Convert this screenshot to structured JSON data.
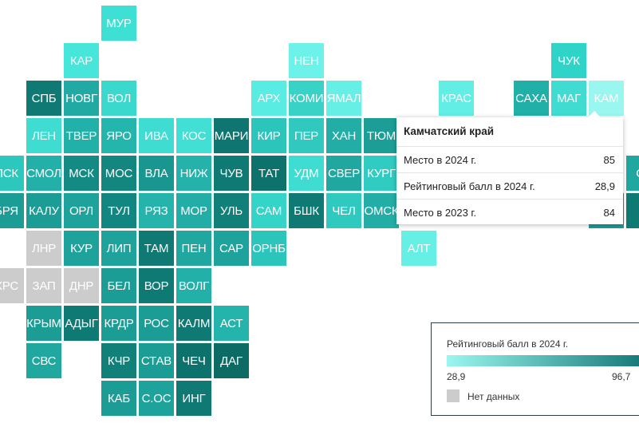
{
  "map_data": {
    "regions": [
      {
        "code": "МУР",
        "col": 3,
        "row": 0,
        "color": "#3fe0d4"
      },
      {
        "code": "КАР",
        "col": 2,
        "row": 1,
        "color": "#46e6da"
      },
      {
        "code": "НЕН",
        "col": 8,
        "row": 1,
        "color": "#6cf2e8"
      },
      {
        "code": "ЧУК",
        "col": 15,
        "row": 1,
        "color": "#2fd4c9"
      },
      {
        "code": "СПБ",
        "col": 1,
        "row": 2,
        "color": "#0f7a74"
      },
      {
        "code": "НОВГ",
        "col": 2,
        "row": 2,
        "color": "#21aaa3"
      },
      {
        "code": "ВОЛ",
        "col": 3,
        "row": 2,
        "color": "#3bd8cd"
      },
      {
        "code": "АРХ",
        "col": 7,
        "row": 2,
        "color": "#58ece2"
      },
      {
        "code": "КОМИ",
        "col": 8,
        "row": 2,
        "color": "#38d2c7"
      },
      {
        "code": "ЯМАЛ",
        "col": 9,
        "row": 2,
        "color": "#66efe5"
      },
      {
        "code": "КРАС",
        "col": 12,
        "row": 2,
        "color": "#62eee4"
      },
      {
        "code": "САХА",
        "col": 14,
        "row": 2,
        "color": "#20b0a8"
      },
      {
        "code": "МАГ",
        "col": 15,
        "row": 2,
        "color": "#40dcd1"
      },
      {
        "code": "КАМ",
        "col": 16,
        "row": 2,
        "color": "#9af7ef"
      },
      {
        "code": "ЛЕН",
        "col": 1,
        "row": 3,
        "color": "#3fdcd1"
      },
      {
        "code": "ТВЕР",
        "col": 2,
        "row": 3,
        "color": "#22b1a9"
      },
      {
        "code": "ЯРО",
        "col": 3,
        "row": 3,
        "color": "#24b5ad"
      },
      {
        "code": "ИВА",
        "col": 4,
        "row": 3,
        "color": "#3fdcd1"
      },
      {
        "code": "КОС",
        "col": 5,
        "row": 3,
        "color": "#42dfd4"
      },
      {
        "code": "МАРИ",
        "col": 6,
        "row": 3,
        "color": "#0e7570"
      },
      {
        "code": "КИР",
        "col": 7,
        "row": 3,
        "color": "#2bc5bb"
      },
      {
        "code": "ПЕР",
        "col": 8,
        "row": 3,
        "color": "#31c9bf"
      },
      {
        "code": "ХАН",
        "col": 9,
        "row": 3,
        "color": "#22aea7"
      },
      {
        "code": "ТЮМ",
        "col": 10,
        "row": 3,
        "color": "#1c9e97"
      },
      {
        "code": "ПСК",
        "col": 0,
        "row": 4,
        "color": "#2cc8be"
      },
      {
        "code": "СМОЛ",
        "col": 1,
        "row": 4,
        "color": "#23b0a8"
      },
      {
        "code": "МСК",
        "col": 2,
        "row": 4,
        "color": "#148a84"
      },
      {
        "code": "МОС",
        "col": 3,
        "row": 4,
        "color": "#138680"
      },
      {
        "code": "ВЛА",
        "col": 4,
        "row": 4,
        "color": "#1a9690"
      },
      {
        "code": "НИЖ",
        "col": 5,
        "row": 4,
        "color": "#24b2aa"
      },
      {
        "code": "ЧУВ",
        "col": 6,
        "row": 4,
        "color": "#0f7a74"
      },
      {
        "code": "ТАТ",
        "col": 7,
        "row": 4,
        "color": "#0d716c"
      },
      {
        "code": "УДМ",
        "col": 8,
        "row": 4,
        "color": "#3fdcd1"
      },
      {
        "code": "СВЕР",
        "col": 9,
        "row": 4,
        "color": "#1fa7a0"
      },
      {
        "code": "КУРГ",
        "col": 10,
        "row": 4,
        "color": "#30ccc2"
      },
      {
        "code": "БРЯ",
        "col": 0,
        "row": 5,
        "color": "#1b9c95"
      },
      {
        "code": "КАЛУ",
        "col": 1,
        "row": 5,
        "color": "#1b9c95"
      },
      {
        "code": "ОРЛ",
        "col": 2,
        "row": 5,
        "color": "#1ea39c"
      },
      {
        "code": "ТУЛ",
        "col": 3,
        "row": 5,
        "color": "#128680"
      },
      {
        "code": "РЯЗ",
        "col": 4,
        "row": 5,
        "color": "#24b4ac"
      },
      {
        "code": "МОР",
        "col": 5,
        "row": 5,
        "color": "#22aea7"
      },
      {
        "code": "УЛЬ",
        "col": 6,
        "row": 5,
        "color": "#118079"
      },
      {
        "code": "САМ",
        "col": 7,
        "row": 5,
        "color": "#35d4c9"
      },
      {
        "code": "БШК",
        "col": 8,
        "row": 5,
        "color": "#0f7a74"
      },
      {
        "code": "ЧЕЛ",
        "col": 9,
        "row": 5,
        "color": "#2ec9bf"
      },
      {
        "code": "ОМСК",
        "col": 10,
        "row": 5,
        "color": "#22aea7"
      },
      {
        "code": "ЛНР",
        "col": 1,
        "row": 6,
        "color": "#cccccc"
      },
      {
        "code": "КУР",
        "col": 2,
        "row": 6,
        "color": "#1ea39c"
      },
      {
        "code": "ЛИП",
        "col": 3,
        "row": 6,
        "color": "#1ea39c"
      },
      {
        "code": "ТАМ",
        "col": 4,
        "row": 6,
        "color": "#0f7a74"
      },
      {
        "code": "ПЕН",
        "col": 5,
        "row": 6,
        "color": "#1fa7a0"
      },
      {
        "code": "САР",
        "col": 6,
        "row": 6,
        "color": "#1ea39c"
      },
      {
        "code": "ОРНБ",
        "col": 7,
        "row": 6,
        "color": "#2bc5bb"
      },
      {
        "code": "АЛТ",
        "col": 11,
        "row": 6,
        "color": "#66efe5"
      },
      {
        "code": "ХРС",
        "col": 0,
        "row": 7,
        "color": "#cccccc"
      },
      {
        "code": "ЗАП",
        "col": 1,
        "row": 7,
        "color": "#cccccc"
      },
      {
        "code": "ДНР",
        "col": 2,
        "row": 7,
        "color": "#cccccc"
      },
      {
        "code": "БЕЛ",
        "col": 3,
        "row": 7,
        "color": "#1b9c95"
      },
      {
        "code": "ВОР",
        "col": 4,
        "row": 7,
        "color": "#0f7a74"
      },
      {
        "code": "ВОЛГ",
        "col": 5,
        "row": 7,
        "color": "#23b0a8"
      },
      {
        "code": "КРЫМ",
        "col": 1,
        "row": 8,
        "color": "#1b9c95"
      },
      {
        "code": "АДЫГ",
        "col": 2,
        "row": 8,
        "color": "#0f7a74"
      },
      {
        "code": "КРДР",
        "col": 3,
        "row": 8,
        "color": "#1b9c95"
      },
      {
        "code": "РОС",
        "col": 4,
        "row": 8,
        "color": "#1b9c95"
      },
      {
        "code": "КАЛМ",
        "col": 5,
        "row": 8,
        "color": "#0f7a74"
      },
      {
        "code": "АСТ",
        "col": 6,
        "row": 8,
        "color": "#24b4ac"
      },
      {
        "code": "СВС",
        "col": 1,
        "row": 9,
        "color": "#1fa7a0"
      },
      {
        "code": "КЧР",
        "col": 3,
        "row": 9,
        "color": "#118079"
      },
      {
        "code": "СТАВ",
        "col": 4,
        "row": 9,
        "color": "#1b9c95"
      },
      {
        "code": "ЧЕЧ",
        "col": 5,
        "row": 9,
        "color": "#0d716c"
      },
      {
        "code": "ДАГ",
        "col": 6,
        "row": 9,
        "color": "#0d6b66"
      },
      {
        "code": "КАБ",
        "col": 3,
        "row": 10,
        "color": "#1b9c95"
      },
      {
        "code": "С.ОС",
        "col": 4,
        "row": 10,
        "color": "#1ea39c"
      },
      {
        "code": "ИНГ",
        "col": 5,
        "row": 10,
        "color": "#0f7a74"
      },
      {
        "code": "СХ",
        "col": 17,
        "row": 4,
        "color": "#1fa7a0"
      },
      {
        "code": "",
        "col": 16,
        "row": 5,
        "color": "#1b9c95"
      },
      {
        "code": "",
        "col": 17,
        "row": 5,
        "color": "#0f7a74"
      }
    ]
  },
  "tooltip": {
    "title": "Камчатский край",
    "rows": [
      {
        "label": "Место в 2024 г.",
        "value": "85"
      },
      {
        "label": "Рейтинговый балл в 2024 г.",
        "value": "28,9"
      },
      {
        "label": "Место в 2023 г.",
        "value": "84"
      }
    ]
  },
  "legend": {
    "title": "Рейтинговый балл в 2024 г.",
    "min": "28,9",
    "max": "96,7",
    "gradient_start": "#9af7ef",
    "gradient_end": "#0d7070",
    "no_data_label": "Нет данных",
    "no_data_color": "#cccccc"
  }
}
